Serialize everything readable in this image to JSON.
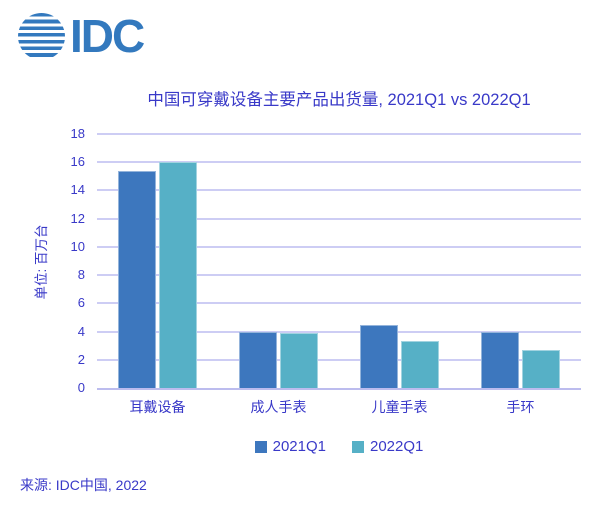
{
  "logo": {
    "text": "IDC",
    "icon": "globe-icon"
  },
  "source_label": "来源: IDC中国, 2022",
  "colors": {
    "series1": "#3D77BE",
    "series2": "#56B0C6",
    "text": "#3939C8",
    "gridline": "#CDCDF4",
    "zero_line": "#BCBCEE",
    "logo_blue": "#3379BE"
  },
  "chart_data": {
    "type": "bar",
    "title": "中国可穿戴设备主要产品出货量, 2021Q1 vs 2022Q1",
    "xlabel": "",
    "ylabel": "单位: 百万台",
    "ylim": [
      0,
      18
    ],
    "ytick_step": 2,
    "grid": true,
    "legend_position": "bottom",
    "categories": [
      "耳戴设备",
      "成人手表",
      "儿童手表",
      "手环"
    ],
    "series": [
      {
        "name": "2021Q1",
        "color": "#3D77BE",
        "values": [
          15.4,
          4.0,
          4.5,
          4.0
        ]
      },
      {
        "name": "2022Q1",
        "color": "#56B0C6",
        "values": [
          16.0,
          3.9,
          3.3,
          2.7
        ]
      }
    ]
  }
}
